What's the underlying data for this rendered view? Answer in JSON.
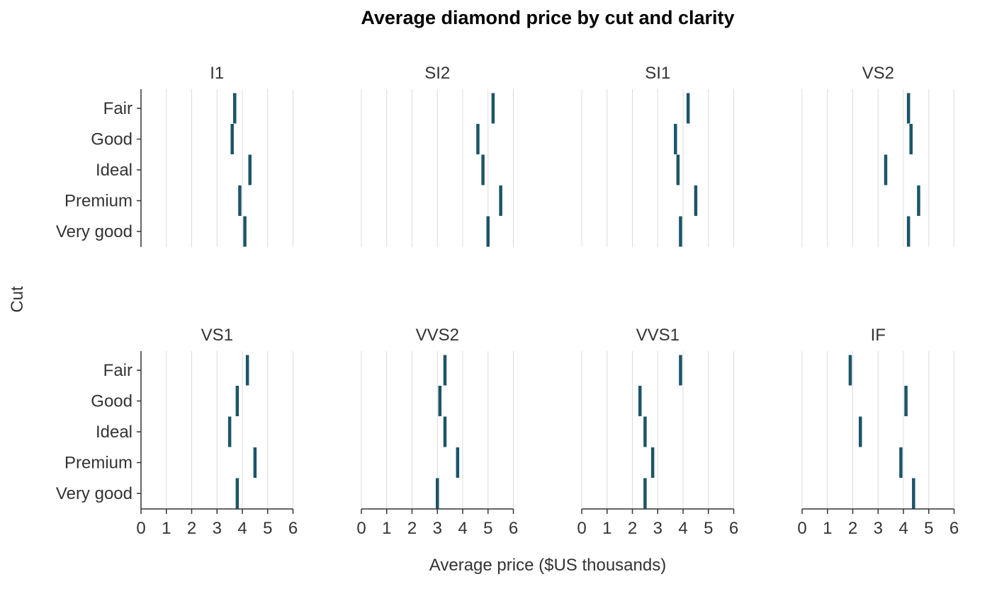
{
  "chart_data": {
    "type": "faceted-dot",
    "title": "Average diamond price by cut and clarity",
    "xlabel": "Average price ($US thousands)",
    "ylabel": "Cut",
    "xlim": [
      0,
      6
    ],
    "x_ticks": [
      "0",
      "1",
      "2",
      "3",
      "4",
      "5",
      "6"
    ],
    "categories": [
      "Fair",
      "Good",
      "Ideal",
      "Premium",
      "Very good"
    ],
    "grid": "vertical major gridlines",
    "mark_color": "#1b5568",
    "facets": [
      {
        "name": "I1",
        "values": [
          3.7,
          3.6,
          4.3,
          3.9,
          4.1
        ]
      },
      {
        "name": "SI2",
        "values": [
          5.2,
          4.6,
          4.8,
          5.5,
          5.0
        ]
      },
      {
        "name": "SI1",
        "values": [
          4.2,
          3.7,
          3.8,
          4.5,
          3.9
        ]
      },
      {
        "name": "VS2",
        "values": [
          4.2,
          4.3,
          3.3,
          4.6,
          4.2
        ]
      },
      {
        "name": "VS1",
        "values": [
          4.2,
          3.8,
          3.5,
          4.5,
          3.8
        ]
      },
      {
        "name": "VVS2",
        "values": [
          3.3,
          3.1,
          3.3,
          3.8,
          3.0
        ]
      },
      {
        "name": "VVS1",
        "values": [
          3.9,
          2.3,
          2.5,
          2.8,
          2.5
        ]
      },
      {
        "name": "IF",
        "values": [
          1.9,
          4.1,
          2.3,
          3.9,
          4.4
        ]
      }
    ]
  }
}
